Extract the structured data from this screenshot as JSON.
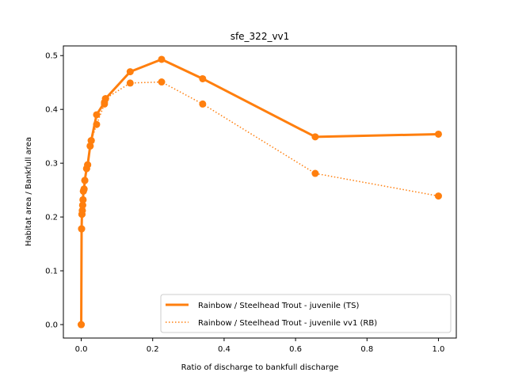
{
  "chart_data": {
    "type": "line",
    "title": "sfe_322_vv1",
    "xlabel": "Ratio of discharge to bankfull discharge",
    "ylabel": "Habitat area / Bankfull area",
    "xlim": [
      -0.05,
      1.05
    ],
    "ylim": [
      -0.025,
      0.518
    ],
    "xticks": [
      0.0,
      0.2,
      0.4,
      0.6,
      0.8,
      1.0
    ],
    "xtick_labels": [
      "0.0",
      "0.2",
      "0.4",
      "0.6",
      "0.8",
      "1.0"
    ],
    "yticks": [
      0.0,
      0.1,
      0.2,
      0.3,
      0.4,
      0.5
    ],
    "ytick_labels": [
      "0.0",
      "0.1",
      "0.2",
      "0.3",
      "0.4",
      "0.5"
    ],
    "legend_position": "lower-right",
    "series": [
      {
        "name": "Rainbow / Steelhead Trout - juvenile (TS)",
        "style": "solid",
        "color": "#ff7f0e",
        "x": [
          0.0,
          0.001,
          0.002,
          0.003,
          0.004,
          0.005,
          0.006,
          0.008,
          0.01,
          0.015,
          0.018,
          0.025,
          0.028,
          0.043,
          0.065,
          0.068,
          0.137,
          0.225,
          0.34,
          0.655,
          1.0
        ],
        "y": [
          0.0,
          0.178,
          0.205,
          0.212,
          0.222,
          0.232,
          0.248,
          0.252,
          0.268,
          0.29,
          0.297,
          0.332,
          0.342,
          0.39,
          0.413,
          0.42,
          0.47,
          0.493,
          0.457,
          0.349,
          0.354
        ]
      },
      {
        "name": "Rainbow / Steelhead Trout - juvenile vv1 (RB)",
        "style": "dotted",
        "color": "#ff7f0e",
        "x": [
          0.0,
          0.001,
          0.002,
          0.003,
          0.004,
          0.005,
          0.006,
          0.008,
          0.01,
          0.015,
          0.018,
          0.025,
          0.028,
          0.043,
          0.065,
          0.068,
          0.137,
          0.225,
          0.34,
          0.655,
          1.0
        ],
        "y": [
          0.0,
          0.178,
          0.205,
          0.212,
          0.222,
          0.232,
          0.248,
          0.252,
          0.268,
          0.29,
          0.297,
          0.332,
          0.342,
          0.372,
          0.41,
          0.42,
          0.449,
          0.451,
          0.41,
          0.281,
          0.239
        ]
      }
    ]
  }
}
